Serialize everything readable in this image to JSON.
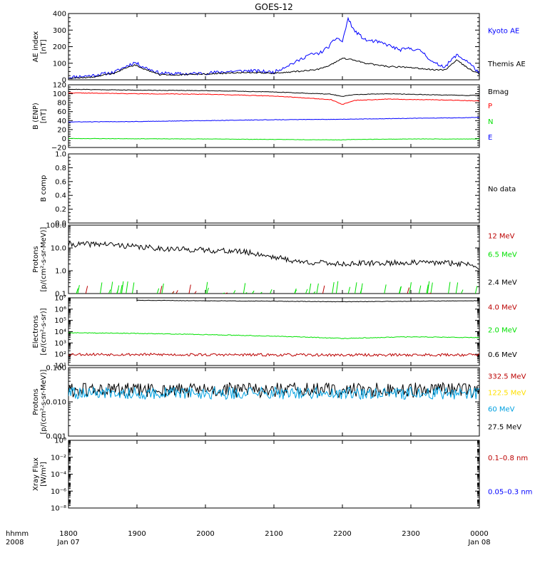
{
  "title": "GOES-12",
  "colors": {
    "black": "#000000",
    "blue": "#0000ff",
    "red": "#ff0000",
    "green": "#00e000",
    "darkred": "#bb0000",
    "yellow": "#ffe000",
    "cyan": "#00a0e0"
  },
  "xaxis": {
    "corner_label_1": "hhmm",
    "corner_label_2": "2008",
    "ticks": [
      {
        "t": 0,
        "label": "1800",
        "sub": "Jan 07"
      },
      {
        "t": 60,
        "label": "1900",
        "sub": ""
      },
      {
        "t": 120,
        "label": "2000",
        "sub": ""
      },
      {
        "t": 180,
        "label": "2100",
        "sub": ""
      },
      {
        "t": 240,
        "label": "2200",
        "sub": ""
      },
      {
        "t": 300,
        "label": "2300",
        "sub": ""
      },
      {
        "t": 360,
        "label": "0000",
        "sub": "Jan 08"
      }
    ],
    "range_minutes": [
      0,
      360
    ]
  },
  "chart_data": [
    {
      "type": "line",
      "ylabel": [
        "AE index",
        "[nT]"
      ],
      "ylim": [
        0,
        400
      ],
      "scale": "linear",
      "yticks": [
        0,
        100,
        200,
        300,
        400
      ],
      "yticklabels": [
        "0",
        "100",
        "200",
        "300",
        "400"
      ],
      "legend": [
        {
          "label": "Kyoto AE",
          "color": "#0000ff"
        },
        {
          "label": "Themis AE",
          "color": "#000000"
        }
      ],
      "series": [
        {
          "name": "Kyoto AE",
          "color": "#0000ff",
          "noise": 10,
          "seed": 11,
          "x": [
            0,
            20,
            40,
            50,
            58,
            65,
            80,
            100,
            120,
            140,
            160,
            180,
            190,
            200,
            210,
            220,
            228,
            235,
            240,
            245,
            250,
            260,
            270,
            280,
            290,
            300,
            310,
            320,
            330,
            340,
            350,
            360
          ],
          "y": [
            15,
            25,
            45,
            80,
            105,
            80,
            40,
            35,
            40,
            50,
            55,
            45,
            80,
            110,
            150,
            160,
            200,
            255,
            230,
            370,
            300,
            240,
            230,
            210,
            180,
            190,
            170,
            100,
            80,
            150,
            110,
            40
          ]
        },
        {
          "name": "Themis AE",
          "color": "#000000",
          "noise": 4,
          "seed": 12,
          "x": [
            0,
            20,
            40,
            50,
            58,
            65,
            80,
            100,
            120,
            140,
            160,
            180,
            200,
            220,
            230,
            240,
            250,
            260,
            280,
            300,
            320,
            330,
            340,
            350,
            360
          ],
          "y": [
            10,
            15,
            40,
            70,
            90,
            70,
            30,
            30,
            35,
            40,
            45,
            40,
            50,
            65,
            90,
            130,
            120,
            100,
            80,
            75,
            60,
            60,
            120,
            70,
            35
          ]
        }
      ]
    },
    {
      "type": "line",
      "ylabel": [
        "B (ENP)",
        "[nT]"
      ],
      "ylim": [
        -20,
        120
      ],
      "scale": "linear",
      "yticks": [
        -20,
        0,
        20,
        40,
        60,
        80,
        100,
        120
      ],
      "yticklabels": [
        "−20",
        "0",
        "20",
        "40",
        "60",
        "80",
        "100",
        "120"
      ],
      "legend": [
        {
          "label": "Bmag",
          "color": "#000000"
        },
        {
          "label": "P",
          "color": "#ff0000"
        },
        {
          "label": "N",
          "color": "#00e000"
        },
        {
          "label": "E",
          "color": "#0000ff"
        }
      ],
      "series": [
        {
          "name": "Bmag",
          "color": "#000000",
          "noise": 0.6,
          "seed": 21,
          "x": [
            0,
            60,
            120,
            180,
            230,
            240,
            250,
            280,
            330,
            360
          ],
          "y": [
            110,
            108,
            107,
            104,
            99,
            94,
            98,
            100,
            97,
            96
          ]
        },
        {
          "name": "P",
          "color": "#ff0000",
          "noise": 0.6,
          "seed": 22,
          "x": [
            0,
            60,
            120,
            180,
            230,
            240,
            250,
            280,
            330,
            360
          ],
          "y": [
            102,
            100,
            99,
            95,
            87,
            76,
            85,
            88,
            86,
            84
          ]
        },
        {
          "name": "N",
          "color": "#00e000",
          "noise": 0.4,
          "seed": 23,
          "x": [
            0,
            120,
            240,
            250,
            300,
            360
          ],
          "y": [
            0,
            -1,
            -3,
            -2,
            -1,
            -1
          ]
        },
        {
          "name": "E",
          "color": "#0000ff",
          "noise": 0.5,
          "seed": 24,
          "x": [
            0,
            60,
            120,
            180,
            240,
            300,
            360
          ],
          "y": [
            37,
            38,
            40,
            42,
            43,
            45,
            47
          ]
        }
      ]
    },
    {
      "type": "line",
      "ylabel": [
        "B comp",
        ""
      ],
      "ylim": [
        0,
        1
      ],
      "scale": "linear",
      "yticks": [
        0,
        0.2,
        0.4,
        0.6,
        0.8,
        1.0
      ],
      "yticklabels": [
        "0.0",
        "0.2",
        "0.4",
        "0.6",
        "0.8",
        "1.0"
      ],
      "legend": [
        {
          "label": "No data",
          "color": "#000000"
        }
      ],
      "series": []
    },
    {
      "type": "line",
      "ylabel": [
        "Protons",
        "[p/(cm²-s-sr-MeV)]"
      ],
      "ylim": [
        0.1,
        100
      ],
      "scale": "log",
      "yticks": [
        0.1,
        1,
        10,
        100
      ],
      "yticklabels": [
        "0.1",
        "1.0",
        "10.0",
        "100.0"
      ],
      "legend": [
        {
          "label": "12 MeV",
          "color": "#bb0000"
        },
        {
          "label": "6.5 MeV",
          "color": "#00e000"
        },
        {
          "label": "2.4 MeV",
          "color": "#000000"
        }
      ],
      "series": [
        {
          "name": "2.4 MeV",
          "color": "#000000",
          "noise": 0.12,
          "seed": 41,
          "x": [
            0,
            30,
            60,
            90,
            120,
            150,
            180,
            200,
            240,
            280,
            320,
            350,
            360
          ],
          "y": [
            14,
            15,
            11,
            9,
            8,
            7,
            4,
            2.5,
            2,
            2.2,
            2.3,
            2.0,
            1.5
          ]
        },
        {
          "name": "6.5 MeV",
          "color": "#00e000",
          "mode": "spikes",
          "seed": 42,
          "count": 48,
          "max": 0.35
        },
        {
          "name": "12 MeV",
          "color": "#bb0000",
          "mode": "spikes",
          "seed": 43,
          "count": 10,
          "max": 0.25
        }
      ]
    },
    {
      "type": "line",
      "ylabel": [
        "Electrons",
        "[e/(cm²-s-sr)]"
      ],
      "ylim": [
        10,
        10000000
      ],
      "scale": "log",
      "yticks": [
        10,
        100,
        1000,
        10000,
        100000,
        1000000,
        10000000
      ],
      "yticklabels": [
        "10¹",
        "10²",
        "10³",
        "10⁴",
        "10⁵",
        "10⁶",
        "10⁷"
      ],
      "legend": [
        {
          "label": "4.0 MeV",
          "color": "#bb0000"
        },
        {
          "label": "2.0 MeV",
          "color": "#00e000"
        },
        {
          "label": "0.6 MeV",
          "color": "#000000"
        }
      ],
      "series": [
        {
          "name": "0.6 MeV",
          "color": "#000000",
          "noise": 0.02,
          "seed": 51,
          "x": [
            60,
            120,
            180,
            240,
            300,
            360
          ],
          "y": [
            6000000,
            5500000,
            5000000,
            4500000,
            5000000,
            5500000
          ]
        },
        {
          "name": "2.0 MeV",
          "color": "#00e000",
          "noise": 0.03,
          "seed": 52,
          "x": [
            0,
            60,
            120,
            180,
            240,
            300,
            360
          ],
          "y": [
            8000,
            7000,
            5500,
            4000,
            2500,
            3500,
            3000
          ]
        },
        {
          "name": "4.0 MeV",
          "color": "#bb0000",
          "noise": 0.12,
          "seed": 53,
          "x": [
            0,
            120,
            240,
            360
          ],
          "y": [
            100,
            90,
            85,
            90
          ]
        }
      ]
    },
    {
      "type": "line",
      "ylabel": [
        "Protons",
        "[p/(cm²-s-sr-MeV)]"
      ],
      "ylim": [
        0.001,
        0.1
      ],
      "scale": "log",
      "yticks": [
        0.001,
        0.01,
        0.1
      ],
      "yticklabels": [
        "0.001",
        "0.010",
        "0.100"
      ],
      "legend": [
        {
          "label": "332.5 MeV",
          "color": "#bb0000"
        },
        {
          "label": "122.5 MeV",
          "color": "#ffe000"
        },
        {
          "label": "60 MeV",
          "color": "#00a0e0"
        },
        {
          "label": "27.5 MeV",
          "color": "#000000"
        }
      ],
      "series": [
        {
          "name": "27.5 MeV",
          "color": "#000000",
          "noise": 0.22,
          "seed": 61,
          "x": [
            0,
            360
          ],
          "y": [
            0.022,
            0.022
          ]
        },
        {
          "name": "60 MeV",
          "color": "#00a0e0",
          "noise": 0.18,
          "seed": 62,
          "x": [
            0,
            360
          ],
          "y": [
            0.018,
            0.018
          ]
        }
      ]
    },
    {
      "type": "line",
      "ylabel": [
        "Xray Flux",
        "[W/m²]"
      ],
      "ylim": [
        1e-08,
        1
      ],
      "scale": "log",
      "yticks": [
        1e-08,
        1e-06,
        0.0001,
        0.01,
        1
      ],
      "yticklabels": [
        "10⁻⁸",
        "10⁻⁶",
        "10⁻⁴",
        "10⁻²",
        "10⁰"
      ],
      "legend": [
        {
          "label": "0.1–0.8 nm",
          "color": "#bb0000"
        },
        {
          "label": "0.05–0.3 nm",
          "color": "#0000ff"
        }
      ],
      "series": []
    }
  ]
}
